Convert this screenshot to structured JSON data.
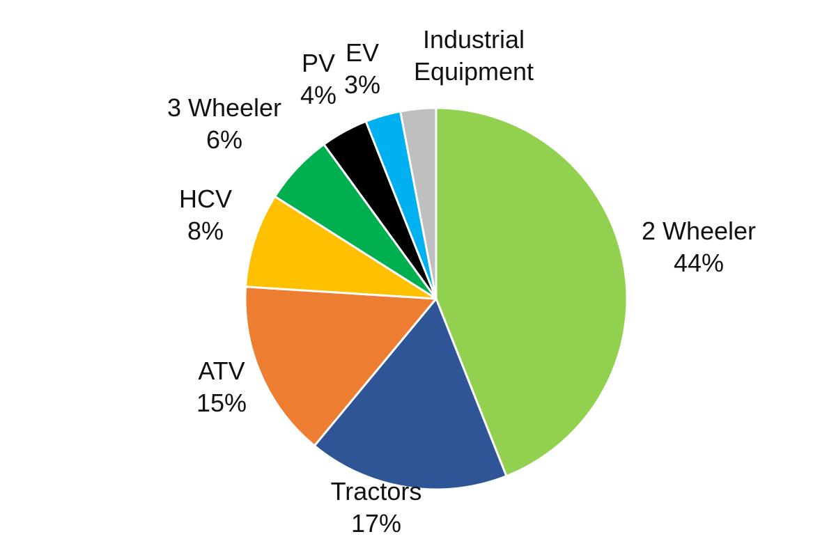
{
  "chart_data": {
    "type": "pie",
    "start_angle_deg": 0,
    "direction": "clockwise",
    "slices": [
      {
        "name": "2 Wheeler",
        "value": 44,
        "label_value": "44%",
        "color": "#92d050"
      },
      {
        "name": "Tractors",
        "value": 17,
        "label_value": "17%",
        "color": "#2f5597"
      },
      {
        "name": "ATV",
        "value": 15,
        "label_value": "15%",
        "color": "#ed7d31"
      },
      {
        "name": "HCV",
        "value": 8,
        "label_value": "8%",
        "color": "#ffc000"
      },
      {
        "name": "3 Wheeler",
        "value": 6,
        "label_value": "6%",
        "color": "#00b050"
      },
      {
        "name": "PV",
        "value": 4,
        "label_value": "4%",
        "color": "#000000"
      },
      {
        "name": "EV",
        "value": 3,
        "label_value": "3%",
        "color": "#00b0f0"
      },
      {
        "name": "Industrial Equipment",
        "value": 3,
        "label_lines": [
          "Industrial",
          "Equipment"
        ],
        "color": "#bfbfbf"
      }
    ],
    "title": "",
    "legend": "none"
  }
}
